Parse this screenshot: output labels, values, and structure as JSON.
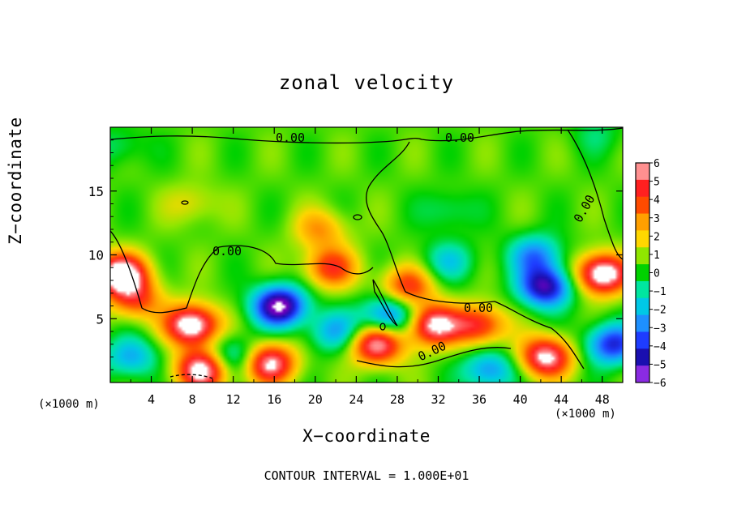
{
  "chart_data": {
    "type": "heatmap",
    "title": "zonal velocity",
    "xlabel": "X−coordinate",
    "ylabel": "Z−coordinate",
    "x_unit_left": "(×1000 m)",
    "x_unit_right": "(×1000 m)",
    "footnote": "CONTOUR INTERVAL = 1.000E+01",
    "xlim": [
      0,
      50
    ],
    "ylim": [
      0,
      20
    ],
    "x_ticks": [
      "4",
      "8",
      "12",
      "16",
      "20",
      "24",
      "28",
      "32",
      "36",
      "40",
      "44",
      "48"
    ],
    "y_ticks": [
      "5",
      "10",
      "15"
    ],
    "colorbar": {
      "range": [
        -6,
        6
      ],
      "labels": [
        "6",
        "5",
        "4",
        "3",
        "2",
        "1",
        "0",
        "−1",
        "−2",
        "−3",
        "−4",
        "−5",
        "−6"
      ],
      "colors": [
        "#8a2be2",
        "#1a0fb0",
        "#1e3cff",
        "#1e90ff",
        "#00c8e6",
        "#00e6a0",
        "#00d200",
        "#90e600",
        "#ffd700",
        "#ffa000",
        "#ff4b00",
        "#ff2020",
        "#ff9090"
      ]
    },
    "contour_labels": [
      "0.00",
      "0.00",
      "0.00",
      "0.00",
      "0.00",
      "0.00"
    ],
    "features": [
      {
        "x": 1.0,
        "z": 8.5,
        "value": 7.0
      },
      {
        "x": 2.5,
        "z": 6.5,
        "value": 3.5
      },
      {
        "x": 8.0,
        "z": 4.5,
        "value": 7.0
      },
      {
        "x": 9.0,
        "z": 1.0,
        "value": 6.5
      },
      {
        "x": 15.5,
        "z": 1.5,
        "value": 6.0
      },
      {
        "x": 21.5,
        "z": 9.0,
        "value": 4.0
      },
      {
        "x": 20.5,
        "z": 12.0,
        "value": 2.5
      },
      {
        "x": 26.0,
        "z": 3.0,
        "value": 6.0
      },
      {
        "x": 29.0,
        "z": 7.5,
        "value": 4.0
      },
      {
        "x": 31.5,
        "z": 4.5,
        "value": 6.0
      },
      {
        "x": 36.0,
        "z": 4.5,
        "value": 4.5
      },
      {
        "x": 42.5,
        "z": 2.0,
        "value": 6.0
      },
      {
        "x": 48.0,
        "z": 8.5,
        "value": 7.0
      },
      {
        "x": 16.5,
        "z": 6.0,
        "value": -7.0
      },
      {
        "x": 2.0,
        "z": 2.0,
        "value": -3.0
      },
      {
        "x": 27.2,
        "z": 5.2,
        "value": -4.5
      },
      {
        "x": 42.5,
        "z": 7.5,
        "value": -6.0
      },
      {
        "x": 41.5,
        "z": 10.0,
        "value": -3.5
      },
      {
        "x": 33.0,
        "z": 9.5,
        "value": -2.2
      },
      {
        "x": 33.0,
        "z": 13.5,
        "value": -1.3
      },
      {
        "x": 1.0,
        "z": 18.5,
        "value": -1.2
      },
      {
        "x": 49.0,
        "z": 3.0,
        "value": -5.0
      },
      {
        "x": 12.0,
        "z": 2.0,
        "value": -3.0
      },
      {
        "x": 22.0,
        "z": 4.0,
        "value": -3.0
      },
      {
        "x": 37.0,
        "z": 1.0,
        "value": -3.5
      },
      {
        "x": 47.5,
        "z": 19.5,
        "value": -1.0
      },
      {
        "x": 8.0,
        "z": 14.0,
        "value": 1.4
      }
    ]
  }
}
